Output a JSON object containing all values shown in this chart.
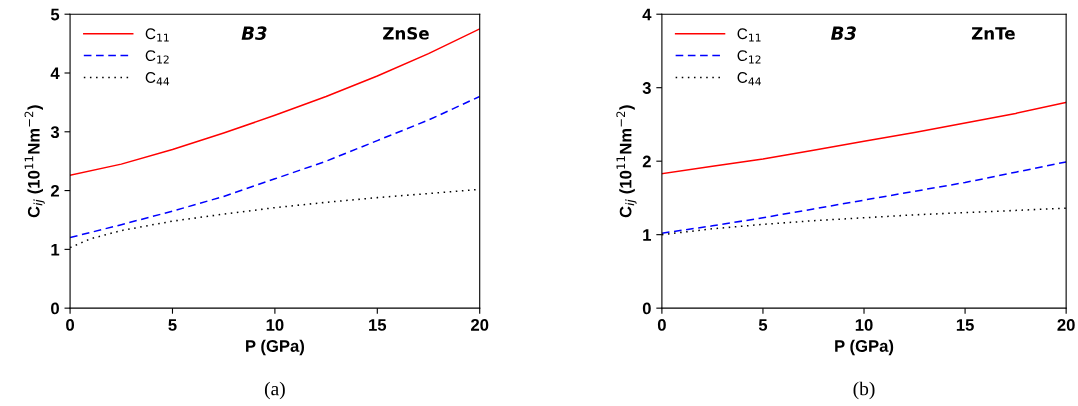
{
  "chart_data": [
    {
      "type": "line",
      "xlabel": "P (GPa)",
      "ylabel": "C$_{ij}$ (10$^{11}$Nm$^{−2}$)",
      "xlim": [
        0,
        20
      ],
      "xticks": [
        0,
        5,
        10,
        15,
        20
      ],
      "ylim": [
        0,
        5
      ],
      "yticks": [
        0,
        1,
        2,
        3,
        4,
        5
      ],
      "grid": false,
      "legend": "top left",
      "annotations": [
        "B3",
        "ZnSe",
        "(a)"
      ],
      "series": [
        {
          "name": "C$_{11}$",
          "color": "#ff0000",
          "line_style": "solid",
          "x": [
            0,
            2.5,
            5,
            7.5,
            10,
            12.5,
            15,
            17.5,
            20
          ],
          "values": [
            2.26,
            2.45,
            2.7,
            2.98,
            3.28,
            3.6,
            3.95,
            4.33,
            4.75
          ]
        },
        {
          "name": "C$_{12}$",
          "color": "#0000ff",
          "line_style": "dashed",
          "x": [
            0,
            2.5,
            5,
            7.5,
            10,
            12.5,
            15,
            17.5,
            20
          ],
          "values": [
            1.2,
            1.42,
            1.65,
            1.9,
            2.2,
            2.5,
            2.85,
            3.2,
            3.6
          ]
        },
        {
          "name": "C$_{44}$",
          "color": "#000000",
          "line_style": "dotted",
          "x": [
            0,
            1,
            2.5,
            5,
            7.5,
            10,
            12.5,
            15,
            17.5,
            20
          ],
          "values": [
            1.03,
            1.18,
            1.32,
            1.48,
            1.6,
            1.71,
            1.8,
            1.88,
            1.95,
            2.02
          ]
        }
      ]
    },
    {
      "type": "line",
      "xlabel": "P (GPa)",
      "ylabel": "C$_{ij}$ (10$^{11}$Nm$^{−2}$)",
      "xlim": [
        0,
        20
      ],
      "xticks": [
        0,
        5,
        10,
        15,
        20
      ],
      "ylim": [
        0,
        4
      ],
      "yticks": [
        0,
        1,
        2,
        3,
        4
      ],
      "grid": false,
      "legend": "top left",
      "annotations": [
        "B3",
        "ZnTe",
        "(b)"
      ],
      "series": [
        {
          "name": "C$_{11}$",
          "color": "#ff0000",
          "line_style": "solid",
          "x": [
            0,
            2.5,
            5,
            7.5,
            10,
            12.5,
            15,
            17.5,
            20
          ],
          "values": [
            1.83,
            1.93,
            2.03,
            2.15,
            2.27,
            2.39,
            2.52,
            2.65,
            2.8
          ]
        },
        {
          "name": "C$_{12}$",
          "color": "#0000ff",
          "line_style": "dashed",
          "x": [
            0,
            2.5,
            5,
            7.5,
            10,
            12.5,
            15,
            17.5,
            20
          ],
          "values": [
            1.02,
            1.12,
            1.23,
            1.35,
            1.47,
            1.59,
            1.71,
            1.85,
            1.99
          ]
        },
        {
          "name": "C$_{44}$",
          "color": "#000000",
          "line_style": "dotted",
          "x": [
            0,
            2.5,
            5,
            7.5,
            10,
            12.5,
            15,
            17.5,
            20
          ],
          "values": [
            1.0,
            1.08,
            1.14,
            1.19,
            1.23,
            1.27,
            1.3,
            1.33,
            1.36
          ]
        }
      ]
    }
  ]
}
